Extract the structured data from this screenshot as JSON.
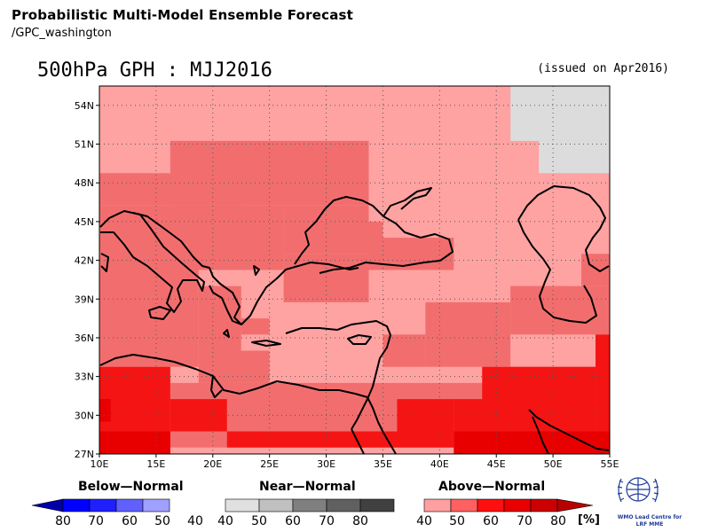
{
  "header": {
    "title": "Probabilistic Multi-Model Ensemble Forecast",
    "subtitle": "/GPC_washington"
  },
  "map": {
    "title": "500hPa GPH : MJJ2016",
    "issued": "(issued on Apr2016)",
    "lat_ticks": [
      "54N",
      "51N",
      "48N",
      "45N",
      "42N",
      "39N",
      "36N",
      "33N",
      "30N",
      "27N"
    ],
    "lon_ticks": [
      "10E",
      "15E",
      "20E",
      "25E",
      "30E",
      "35E",
      "40E",
      "45E",
      "50E",
      "55E"
    ],
    "extent": {
      "lon_min": 10,
      "lon_max": 55,
      "lat_min": 27,
      "lat_max": 55.5
    },
    "category_colors": {
      "AN40": "#ffa2a2",
      "AN50": "#f26e6e",
      "AN60": "#f51414",
      "AN70": "#e80000",
      "AN80": "#d40000",
      "NN40": "#dcdcdc"
    }
  },
  "legend": {
    "below": {
      "title": "Below—Normal",
      "labels": [
        "80",
        "70",
        "60",
        "50",
        "40"
      ],
      "colors": [
        "#0000d8",
        "#0000ff",
        "#2020ff",
        "#6060ff",
        "#a0a0ff"
      ],
      "arrow_color": "#0000a8"
    },
    "near": {
      "title": "Near—Normal",
      "labels": [
        "40",
        "50",
        "60",
        "70",
        "80"
      ],
      "colors": [
        "#e0e0e0",
        "#c0c0c0",
        "#808080",
        "#606060",
        "#404040"
      ]
    },
    "above": {
      "title": "Above—Normal",
      "labels": [
        "40",
        "50",
        "60",
        "70",
        "80"
      ],
      "colors": [
        "#ffa0a0",
        "#ff6060",
        "#ff1010",
        "#e80000",
        "#cc0000"
      ],
      "arrow_color": "#b80000"
    },
    "unit": "[%]"
  },
  "logo": {
    "line1": "WMO Lead Centre for",
    "line2": "LRF MME"
  }
}
